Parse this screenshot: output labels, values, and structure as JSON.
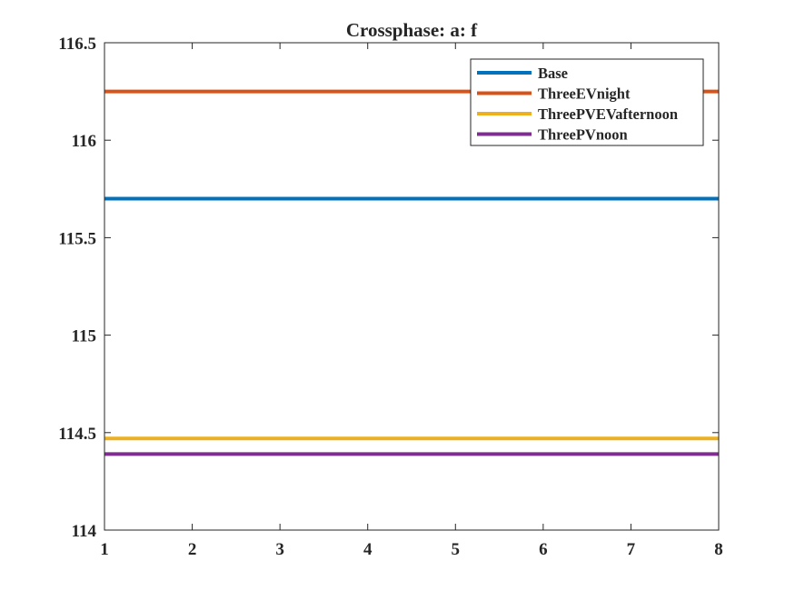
{
  "chart_data": {
    "type": "line",
    "title": "Crossphase: a: f",
    "xlabel": "",
    "ylabel": "",
    "xlim": [
      1,
      8
    ],
    "ylim": [
      114,
      116.5
    ],
    "x_ticks": [
      1,
      2,
      3,
      4,
      5,
      6,
      7,
      8
    ],
    "x_tick_labels": [
      "1",
      "2",
      "3",
      "4",
      "5",
      "6",
      "7",
      "8"
    ],
    "y_ticks": [
      114,
      114.5,
      115,
      115.5,
      116,
      116.5
    ],
    "y_tick_labels": [
      "114",
      "114.5",
      "115",
      "115.5",
      "116",
      "116.5"
    ],
    "grid": false,
    "legend_position": "top-right",
    "series": [
      {
        "name": "Base",
        "color": "#0072BD",
        "x": [
          1,
          2,
          3,
          4,
          5,
          6,
          7,
          8
        ],
        "values": [
          115.7,
          115.7,
          115.7,
          115.7,
          115.7,
          115.7,
          115.7,
          115.7
        ]
      },
      {
        "name": "ThreeEVnight",
        "color": "#D95319",
        "x": [
          1,
          2,
          3,
          4,
          5,
          6,
          7,
          8
        ],
        "values": [
          116.25,
          116.25,
          116.25,
          116.25,
          116.25,
          116.25,
          116.25,
          116.25
        ]
      },
      {
        "name": "ThreePVEVafternoon",
        "color": "#EDB120",
        "x": [
          1,
          2,
          3,
          4,
          5,
          6,
          7,
          8
        ],
        "values": [
          114.47,
          114.47,
          114.47,
          114.47,
          114.47,
          114.47,
          114.47,
          114.47
        ]
      },
      {
        "name": "ThreePVnoon",
        "color": "#7E2F8E",
        "x": [
          1,
          2,
          3,
          4,
          5,
          6,
          7,
          8
        ],
        "values": [
          114.39,
          114.39,
          114.39,
          114.39,
          114.39,
          114.39,
          114.39,
          114.39
        ]
      }
    ]
  }
}
